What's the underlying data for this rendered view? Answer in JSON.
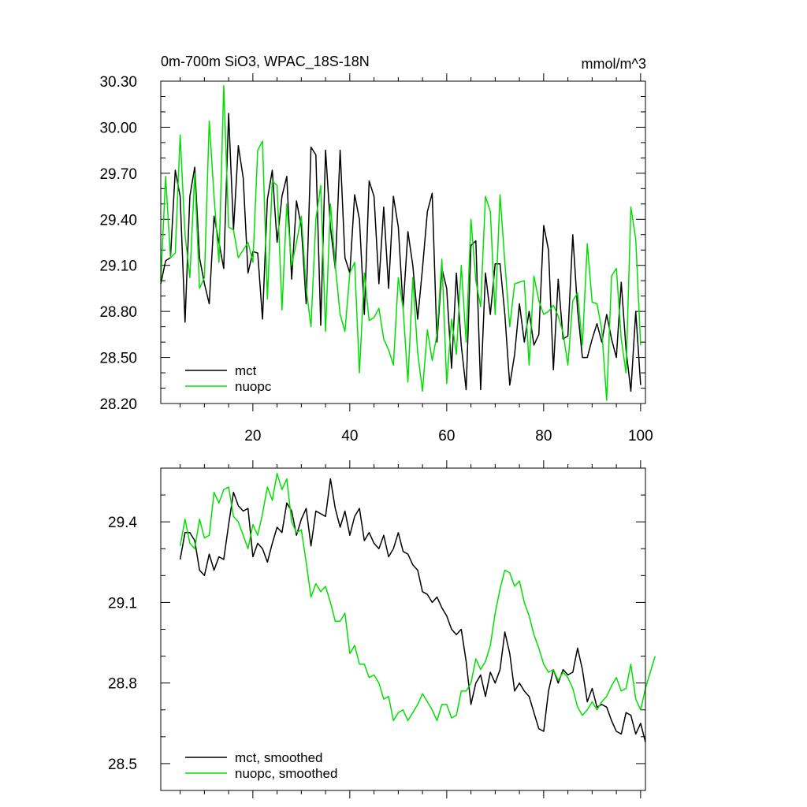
{
  "chart_data": [
    {
      "type": "line",
      "title": "0m-700m SiO3, WPAC_18S-18N",
      "units": "mmol/m^3",
      "xlim": [
        1,
        101
      ],
      "ylim": [
        28.2,
        30.3
      ],
      "xticks": [
        20,
        40,
        60,
        80,
        100
      ],
      "yticks": [
        28.2,
        28.5,
        28.8,
        29.1,
        29.4,
        29.7,
        30.0,
        30.3
      ],
      "ytick_labels": [
        "28.20",
        "28.50",
        "28.80",
        "29.10",
        "29.40",
        "29.70",
        "30.00",
        "30.30"
      ],
      "legend_position": "bottom-left",
      "x_start": 1,
      "series": [
        {
          "name": "mct",
          "color": "#000000",
          "values": [
            28.98,
            29.13,
            29.15,
            29.72,
            29.55,
            28.73,
            29.55,
            29.74,
            29.15,
            28.98,
            28.85,
            29.42,
            29.25,
            29.08,
            30.09,
            29.33,
            29.88,
            29.67,
            29.05,
            29.19,
            29.18,
            28.75,
            29.53,
            29.72,
            29.25,
            29.55,
            29.68,
            29.01,
            29.52,
            29.35,
            28.85,
            29.87,
            29.82,
            28.71,
            29.85,
            29.35,
            29.08,
            29.85,
            29.15,
            29.05,
            29.56,
            29.4,
            28.78,
            29.65,
            29.55,
            28.98,
            29.48,
            28.95,
            29.55,
            29.35,
            28.82,
            29.32,
            29.1,
            28.75,
            29.08,
            29.45,
            29.57,
            28.6,
            29.08,
            28.95,
            28.43,
            29.05,
            28.58,
            28.29,
            29.23,
            29.26,
            28.29,
            29.05,
            28.78,
            29.11,
            29.11,
            28.78,
            28.32,
            28.52,
            28.85,
            28.6,
            28.8,
            28.58,
            28.65,
            29.36,
            29.2,
            28.42,
            29.01,
            28.62,
            28.64,
            29.3,
            28.81,
            28.5,
            28.5,
            28.62,
            28.72,
            28.6,
            28.78,
            28.62,
            28.5,
            28.99,
            28.55,
            28.28,
            28.8,
            28.32
          ]
        },
        {
          "name": "nuopc",
          "color": "#00e000",
          "values": [
            29.0,
            29.68,
            29.15,
            29.18,
            29.95,
            29.3,
            29.02,
            29.7,
            28.95,
            29.02,
            30.04,
            29.55,
            29.12,
            30.27,
            29.35,
            29.33,
            29.15,
            29.2,
            29.25,
            29.12,
            29.85,
            29.91,
            28.88,
            29.65,
            29.62,
            28.81,
            29.5,
            29.1,
            29.25,
            29.42,
            28.95,
            28.7,
            29.4,
            29.62,
            28.67,
            29.5,
            29.1,
            28.78,
            28.67,
            29.05,
            29.12,
            28.4,
            29.05,
            28.74,
            28.76,
            28.82,
            28.62,
            28.55,
            28.45,
            29.02,
            28.82,
            28.34,
            29.02,
            28.53,
            28.28,
            28.68,
            28.48,
            28.65,
            29.14,
            28.33,
            28.75,
            28.52,
            29.1,
            28.6,
            29.4,
            29.0,
            28.83,
            29.55,
            29.45,
            28.78,
            29.56,
            29.12,
            28.7,
            28.98,
            28.99,
            29.0,
            28.45,
            29.03,
            28.87,
            28.78,
            28.8,
            28.84,
            28.77,
            28.66,
            28.45,
            28.87,
            28.92,
            28.58,
            29.24,
            28.86,
            28.85,
            28.68,
            28.22,
            29.03,
            29.08,
            28.62,
            28.4,
            29.48,
            29.27,
            28.58
          ]
        }
      ]
    },
    {
      "type": "line",
      "title": "",
      "units": "",
      "xlim": [
        1,
        101
      ],
      "ylim": [
        28.4,
        29.6
      ],
      "xticks": [
        20,
        40,
        60,
        80,
        100
      ],
      "yticks": [
        28.5,
        28.8,
        29.1,
        29.4
      ],
      "ytick_labels": [
        "28.5",
        "28.8",
        "29.1",
        "29.4"
      ],
      "legend_position": "bottom-left",
      "x_start": 5,
      "series": [
        {
          "name": "mct, smoothed",
          "color": "#000000",
          "values": [
            29.26,
            29.36,
            29.36,
            29.33,
            29.22,
            29.2,
            29.28,
            29.22,
            29.27,
            29.26,
            29.39,
            29.51,
            29.46,
            29.44,
            29.45,
            29.27,
            29.32,
            29.3,
            29.25,
            29.32,
            29.38,
            29.36,
            29.47,
            29.44,
            29.35,
            29.41,
            29.45,
            29.31,
            29.44,
            29.43,
            29.42,
            29.56,
            29.45,
            29.38,
            29.44,
            29.35,
            29.42,
            29.45,
            29.33,
            29.36,
            29.32,
            29.3,
            29.35,
            29.27,
            29.3,
            29.36,
            29.29,
            29.28,
            29.24,
            29.22,
            29.14,
            29.13,
            29.1,
            29.12,
            29.08,
            29.05,
            29.0,
            28.98,
            29.0,
            28.88,
            28.72,
            28.8,
            28.83,
            28.75,
            28.84,
            28.8,
            28.85,
            28.99,
            28.91,
            28.77,
            28.8,
            28.77,
            28.75,
            28.69,
            28.63,
            28.62,
            28.77,
            28.85,
            28.8,
            28.85,
            28.83,
            28.84,
            28.93,
            28.85,
            28.73,
            28.78,
            28.71,
            28.72,
            28.71,
            28.66,
            28.62,
            28.61,
            28.69,
            28.68,
            28.61,
            28.65,
            28.58
          ]
        },
        {
          "name": "nuopc, smoothed",
          "color": "#00e000",
          "values": [
            29.31,
            29.41,
            29.32,
            29.3,
            29.41,
            29.34,
            29.35,
            29.51,
            29.47,
            29.52,
            29.53,
            29.42,
            29.4,
            29.35,
            29.3,
            29.39,
            29.35,
            29.43,
            29.53,
            29.48,
            29.58,
            29.52,
            29.56,
            29.4,
            29.36,
            29.37,
            29.25,
            29.12,
            29.17,
            29.14,
            29.16,
            29.1,
            29.03,
            29.03,
            29.06,
            28.91,
            28.94,
            28.87,
            28.87,
            28.82,
            28.83,
            28.8,
            28.74,
            28.75,
            28.66,
            28.69,
            28.7,
            28.66,
            28.69,
            28.72,
            28.76,
            28.73,
            28.7,
            28.66,
            28.72,
            28.72,
            28.67,
            28.68,
            28.77,
            28.77,
            28.8,
            28.89,
            28.85,
            28.88,
            28.94,
            29.06,
            29.15,
            29.22,
            29.21,
            29.16,
            29.18,
            29.1,
            29.05,
            28.98,
            28.93,
            28.87,
            28.84,
            28.85,
            28.81,
            28.84,
            28.82,
            28.78,
            28.71,
            28.68,
            28.7,
            28.73,
            28.7,
            28.73,
            28.75,
            28.79,
            28.82,
            28.77,
            28.78,
            28.87,
            28.74,
            28.7,
            28.78,
            28.84,
            28.9
          ]
        }
      ]
    }
  ]
}
